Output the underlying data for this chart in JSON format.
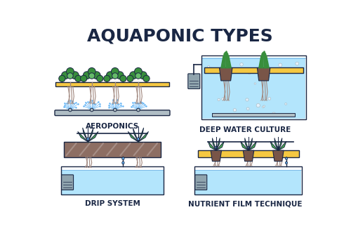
{
  "title": "AQUAPONIC TYPES",
  "title_color": "#1a2744",
  "title_fontsize": 18,
  "background": "#ffffff",
  "panels": [
    {
      "label": "AEROPONICS"
    },
    {
      "label": "DEEP WATER CULTURE"
    },
    {
      "label": "DRIP SYSTEM"
    },
    {
      "label": "NUTRIENT FILM TECHNIQUE"
    }
  ],
  "colors": {
    "yellow_board": "#f5c842",
    "pipe_gray": "#b0bec5",
    "pipe_dark": "#78909c",
    "water_blue": "#90caf9",
    "water_light": "#bbdefb",
    "water_dark_line": "#1565c0",
    "green_dark": "#388e3c",
    "green_light": "#66bb6a",
    "green_mid": "#4caf50",
    "root_brown": "#a1887f",
    "root_light": "#d7ccc8",
    "soil_brown": "#8d6e63",
    "soil_light": "#bcaaa4",
    "pot_brown": "#795548",
    "spray_blue": "#64b5f6",
    "outline": "#1a2744",
    "pump_gray": "#90a4ae",
    "bubble_white": "#e3f2fd",
    "tank_blue_fill": "#b3e5fc",
    "tube_gray": "#9e9e9e"
  },
  "label_fontsize": 7.5,
  "label_color": "#1a2744"
}
